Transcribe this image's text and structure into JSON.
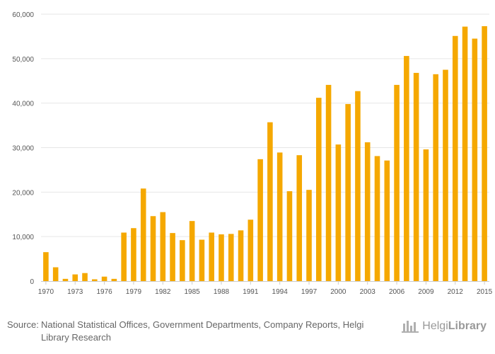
{
  "chart_data": {
    "type": "bar",
    "title": "",
    "xlabel": "",
    "ylabel": "",
    "ylim": [
      0,
      60000
    ],
    "yticks": [
      0,
      10000,
      20000,
      30000,
      40000,
      50000,
      60000
    ],
    "ytick_labels": [
      "0",
      "10,000",
      "20,000",
      "30,000",
      "40,000",
      "50,000",
      "60,000"
    ],
    "xtick_labels": [
      "1970",
      "1973",
      "1976",
      "1979",
      "1982",
      "1985",
      "1988",
      "1991",
      "1994",
      "1997",
      "2000",
      "2003",
      "2006",
      "2009",
      "2012",
      "2015"
    ],
    "bar_color": "#f5a800",
    "categories": [
      1970,
      1971,
      1972,
      1973,
      1974,
      1975,
      1976,
      1977,
      1978,
      1979,
      1980,
      1981,
      1982,
      1983,
      1984,
      1985,
      1986,
      1987,
      1988,
      1989,
      1990,
      1991,
      1992,
      1993,
      1994,
      1995,
      1996,
      1997,
      1998,
      1999,
      2000,
      2001,
      2002,
      2003,
      2004,
      2005,
      2006,
      2007,
      2008,
      2009,
      2010,
      2011,
      2012,
      2013,
      2014,
      2015
    ],
    "values": [
      6500,
      3100,
      500,
      1500,
      1800,
      400,
      1000,
      500,
      10900,
      11900,
      20800,
      14600,
      15500,
      10800,
      9200,
      13500,
      9300,
      10900,
      10500,
      10600,
      11400,
      13800,
      27400,
      35700,
      28900,
      20200,
      28300,
      20500,
      41200,
      44100,
      30700,
      39800,
      42700,
      31200,
      28100,
      27100,
      44100,
      50600,
      46800,
      29600,
      46500,
      47500,
      55100,
      57200,
      54500,
      57300
    ]
  },
  "footer": {
    "source_prefix": "Source:",
    "source_text": "National Statistical Offices, Government Departments, Company Reports, Helgi Library Research"
  },
  "logo": {
    "text_light": "Helgi",
    "text_bold": "Library"
  }
}
